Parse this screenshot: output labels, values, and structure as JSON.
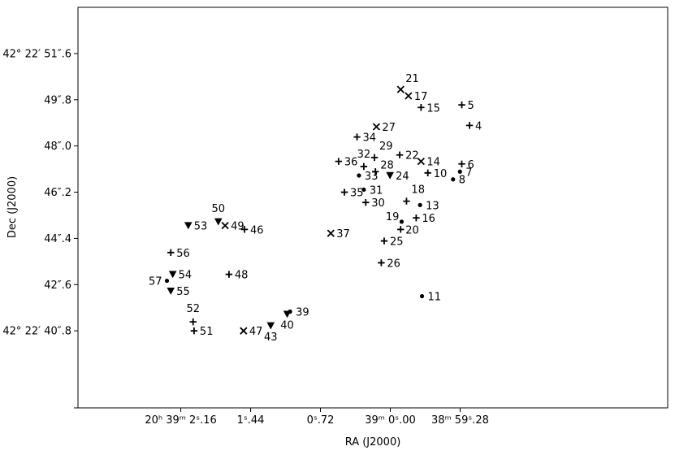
{
  "chart_data": {
    "type": "scatter",
    "xlabel": "RA (J2000)",
    "ylabel": "Dec (J2000)",
    "x_unit": "arcsec offset from 20h39m00s (RA increases to the left)",
    "y_unit": "arcsec of Dec above 42°22′40″",
    "xlim": [
      3.22,
      -2.86
    ],
    "ylim": [
      37.8,
      53.4
    ],
    "x_ticks": [
      {
        "value": 2.16,
        "label": "20ʰ 39ᵐ 2ˢ.16"
      },
      {
        "value": 1.44,
        "label": "1ˢ.44"
      },
      {
        "value": 0.72,
        "label": "0ˢ.72"
      },
      {
        "value": 0.0,
        "label": "39ᵐ 0ˢ.00"
      },
      {
        "value": -0.72,
        "label": "38ᵐ 59ˢ.28"
      }
    ],
    "y_ticks": [
      {
        "value": 40.8,
        "label": "42° 22′ 40″.8"
      },
      {
        "value": 42.6,
        "label": "42″.6"
      },
      {
        "value": 44.4,
        "label": "44″.4"
      },
      {
        "value": 46.2,
        "label": "46″.2"
      },
      {
        "value": 48.0,
        "label": "48″.0"
      },
      {
        "value": 49.8,
        "label": "49″.8"
      },
      {
        "value": 51.6,
        "label": "42° 22′ 51″.6"
      }
    ],
    "points": [
      {
        "id": "4",
        "ra": -0.817,
        "dec": 48.8,
        "marker": "plus"
      },
      {
        "id": "5",
        "ra": -0.737,
        "dec": 49.6,
        "marker": "plus"
      },
      {
        "id": "6",
        "ra": -0.737,
        "dec": 47.3,
        "marker": "plus"
      },
      {
        "id": "7",
        "ra": -0.718,
        "dec": 47.0,
        "marker": "dot"
      },
      {
        "id": "8",
        "ra": -0.647,
        "dec": 46.7,
        "marker": "dot"
      },
      {
        "id": "10",
        "ra": -0.387,
        "dec": 46.95,
        "marker": "plus"
      },
      {
        "id": "11",
        "ra": -0.327,
        "dec": 42.15,
        "marker": "dot"
      },
      {
        "id": "13",
        "ra": -0.307,
        "dec": 45.7,
        "marker": "dot"
      },
      {
        "id": "14",
        "ra": -0.317,
        "dec": 47.4,
        "marker": "x"
      },
      {
        "id": "15",
        "ra": -0.317,
        "dec": 49.5,
        "marker": "plus"
      },
      {
        "id": "16",
        "ra": -0.267,
        "dec": 45.2,
        "marker": "plus"
      },
      {
        "id": "17",
        "ra": -0.187,
        "dec": 49.95,
        "marker": "x"
      },
      {
        "id": "18",
        "ra": -0.167,
        "dec": 45.85,
        "marker": "plus"
      },
      {
        "id": "19",
        "ra": -0.117,
        "dec": 45.05,
        "marker": "dot"
      },
      {
        "id": "20",
        "ra": -0.107,
        "dec": 44.75,
        "marker": "plus"
      },
      {
        "id": "21",
        "ra": -0.107,
        "dec": 50.2,
        "marker": "x"
      },
      {
        "id": "22",
        "ra": -0.097,
        "dec": 47.65,
        "marker": "plus"
      },
      {
        "id": "24",
        "ra": 0.003,
        "dec": 46.85,
        "marker": "tri"
      },
      {
        "id": "25",
        "ra": 0.063,
        "dec": 44.3,
        "marker": "plus"
      },
      {
        "id": "26",
        "ra": 0.093,
        "dec": 43.45,
        "marker": "plus"
      },
      {
        "id": "27",
        "ra": 0.143,
        "dec": 48.75,
        "marker": "x"
      },
      {
        "id": "28",
        "ra": 0.153,
        "dec": 47.0,
        "marker": "plus"
      },
      {
        "id": "29",
        "ra": 0.163,
        "dec": 47.55,
        "marker": "plus"
      },
      {
        "id": "30",
        "ra": 0.253,
        "dec": 45.8,
        "marker": "plus"
      },
      {
        "id": "31",
        "ra": 0.273,
        "dec": 46.3,
        "marker": "dot"
      },
      {
        "id": "32",
        "ra": 0.273,
        "dec": 47.2,
        "marker": "plus"
      },
      {
        "id": "33",
        "ra": 0.323,
        "dec": 46.85,
        "marker": "dot"
      },
      {
        "id": "34",
        "ra": 0.343,
        "dec": 48.35,
        "marker": "plus"
      },
      {
        "id": "35",
        "ra": 0.473,
        "dec": 46.2,
        "marker": "plus"
      },
      {
        "id": "36",
        "ra": 0.533,
        "dec": 47.4,
        "marker": "plus"
      },
      {
        "id": "37",
        "ra": 0.613,
        "dec": 44.6,
        "marker": "x"
      },
      {
        "id": "39",
        "ra": 1.033,
        "dec": 41.55,
        "marker": "dot"
      },
      {
        "id": "40",
        "ra": 1.063,
        "dec": 41.45,
        "marker": "tri"
      },
      {
        "id": "43",
        "ra": 1.233,
        "dec": 41.0,
        "marker": "tri"
      },
      {
        "id": "46",
        "ra": 1.503,
        "dec": 44.75,
        "marker": "plus"
      },
      {
        "id": "47",
        "ra": 1.513,
        "dec": 40.8,
        "marker": "x"
      },
      {
        "id": "48",
        "ra": 1.663,
        "dec": 43.0,
        "marker": "plus"
      },
      {
        "id": "49",
        "ra": 1.703,
        "dec": 44.9,
        "marker": "x"
      },
      {
        "id": "50",
        "ra": 1.773,
        "dec": 45.05,
        "marker": "tri"
      },
      {
        "id": "51",
        "ra": 2.023,
        "dec": 40.8,
        "marker": "plus"
      },
      {
        "id": "52",
        "ra": 2.033,
        "dec": 41.15,
        "marker": "plus"
      },
      {
        "id": "53",
        "ra": 2.083,
        "dec": 44.9,
        "marker": "tri"
      },
      {
        "id": "54",
        "ra": 2.243,
        "dec": 43.0,
        "marker": "tri"
      },
      {
        "id": "55",
        "ra": 2.263,
        "dec": 42.35,
        "marker": "tri"
      },
      {
        "id": "56",
        "ra": 2.263,
        "dec": 43.85,
        "marker": "plus"
      },
      {
        "id": "57",
        "ra": 2.303,
        "dec": 42.75,
        "marker": "dot"
      }
    ]
  }
}
